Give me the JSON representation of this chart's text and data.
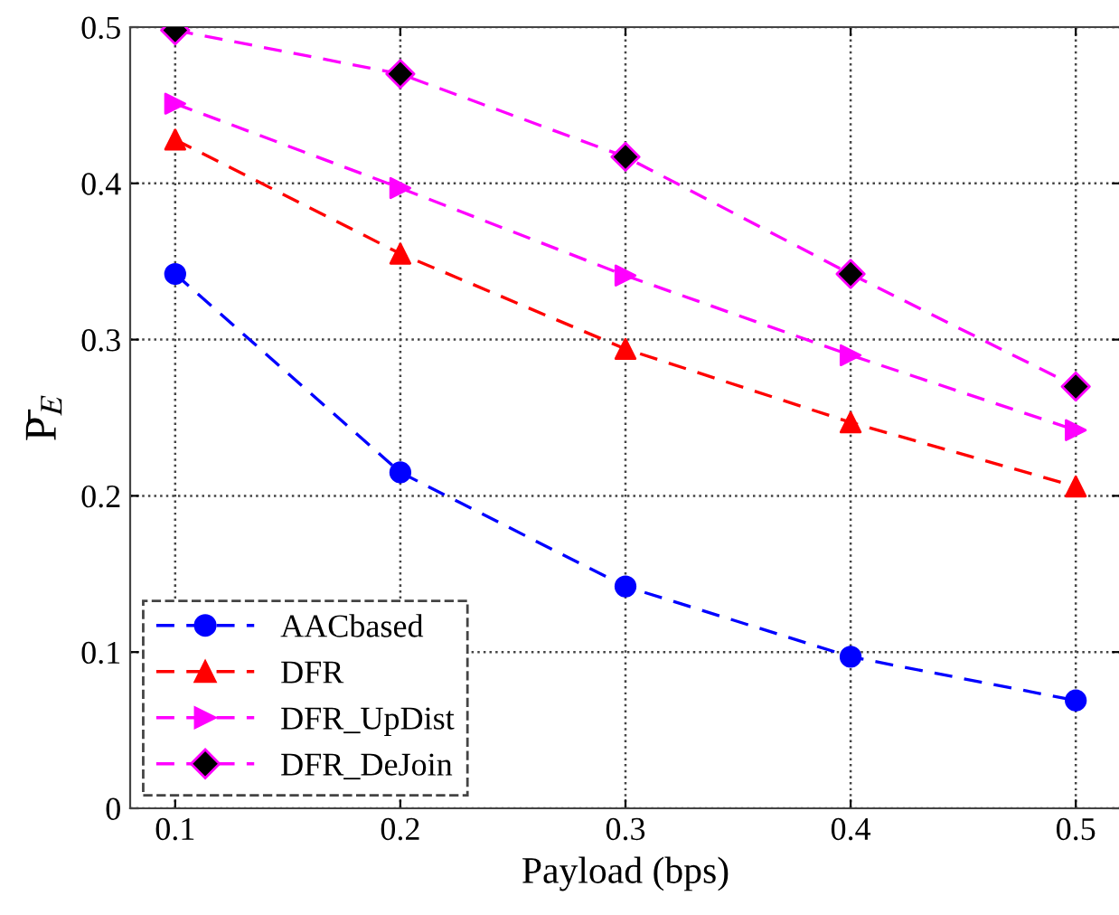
{
  "chart_data": {
    "type": "line",
    "xlabel": "Payload (bps)",
    "ylabel": "P̄$_{E}$",
    "x": [
      0.1,
      0.2,
      0.3,
      0.4,
      0.5
    ],
    "xlim": [
      0.08,
      0.52
    ],
    "xticks": [
      0.1,
      0.2,
      0.3,
      0.4,
      0.5
    ],
    "ylim": [
      0,
      0.5
    ],
    "yticks": [
      0,
      0.1,
      0.2,
      0.3,
      0.4,
      0.5
    ],
    "grid": true,
    "legend": "bottom left",
    "line_style": "dashed",
    "series": [
      {
        "name": "AACbased",
        "color": "#0000ff",
        "marker": "circle",
        "values": [
          0.342,
          0.215,
          0.142,
          0.097,
          0.069
        ]
      },
      {
        "name": "DFR",
        "color": "#ff0000",
        "marker": "triangle",
        "values": [
          0.428,
          0.355,
          0.294,
          0.247,
          0.206
        ]
      },
      {
        "name": "DFR_UpDist",
        "color": "#ff00ff",
        "marker": "triangle_right",
        "values": [
          0.451,
          0.397,
          0.341,
          0.29,
          0.242
        ]
      },
      {
        "name": "DFR_DeJoin",
        "color": "#ff00ff",
        "colors": [
          "#000000",
          "#000000",
          "#000000",
          "#000000",
          "#000000"
        ],
        "marker": "diamond",
        "values": [
          0.498,
          0.47,
          0.417,
          0.342,
          0.27
        ]
      }
    ]
  }
}
